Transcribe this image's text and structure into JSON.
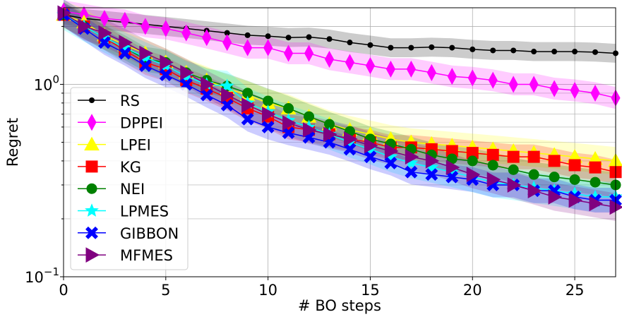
{
  "chart_data": {
    "type": "line",
    "title": "",
    "xlabel": "# BO steps",
    "ylabel": "Regret",
    "xlim": [
      0,
      27
    ],
    "ylim": [
      0.1,
      2.5
    ],
    "yscale": "log",
    "grid": true,
    "legend": "left",
    "x_ticks": [
      0,
      5,
      10,
      15,
      20,
      25
    ],
    "x_tick_labels": [
      "0",
      "5",
      "10",
      "15",
      "20",
      "25"
    ],
    "y_ticks": [
      0.1,
      1.0
    ],
    "y_tick_labels": [
      [
        "10",
        "−1"
      ],
      [
        "10",
        "0"
      ]
    ],
    "x": [
      0,
      1,
      2,
      3,
      4,
      5,
      6,
      7,
      8,
      9,
      10,
      11,
      12,
      13,
      14,
      15,
      16,
      17,
      18,
      19,
      20,
      21,
      22,
      23,
      24,
      25,
      26,
      27
    ],
    "series": [
      {
        "name": "RS",
        "color": "#000000",
        "marker": "circle",
        "values": [
          2.3,
          2.2,
          2.15,
          2.1,
          2.05,
          2.0,
          1.95,
          1.9,
          1.85,
          1.8,
          1.78,
          1.75,
          1.76,
          1.72,
          1.65,
          1.6,
          1.55,
          1.55,
          1.56,
          1.55,
          1.52,
          1.5,
          1.5,
          1.48,
          1.48,
          1.48,
          1.47,
          1.45
        ],
        "spread": 0.12
      },
      {
        "name": "DPPEI",
        "color": "#ff00ff",
        "marker": "thin_diamond",
        "values": [
          2.4,
          2.3,
          2.2,
          2.15,
          2.0,
          1.95,
          1.85,
          1.75,
          1.65,
          1.55,
          1.55,
          1.45,
          1.45,
          1.35,
          1.3,
          1.25,
          1.2,
          1.2,
          1.15,
          1.1,
          1.08,
          1.05,
          1.0,
          1.0,
          0.95,
          0.93,
          0.9,
          0.85
        ],
        "spread": 0.14
      },
      {
        "name": "LPEI",
        "color": "#ffff00",
        "marker": "triangle",
        "values": [
          2.3,
          2.1,
          1.8,
          1.6,
          1.45,
          1.3,
          1.15,
          1.05,
          0.95,
          0.88,
          0.8,
          0.75,
          0.68,
          0.62,
          0.58,
          0.55,
          0.52,
          0.5,
          0.49,
          0.48,
          0.47,
          0.46,
          0.45,
          0.44,
          0.43,
          0.42,
          0.41,
          0.4
        ],
        "spread": 0.18
      },
      {
        "name": "KG",
        "color": "#ff0000",
        "marker": "square",
        "values": [
          2.3,
          2.0,
          1.75,
          1.5,
          1.3,
          1.2,
          1.05,
          0.95,
          0.85,
          0.75,
          0.68,
          0.6,
          0.58,
          0.55,
          0.52,
          0.5,
          0.47,
          0.47,
          0.46,
          0.45,
          0.44,
          0.43,
          0.42,
          0.42,
          0.4,
          0.38,
          0.37,
          0.35
        ],
        "spread": 0.16
      },
      {
        "name": "NEI",
        "color": "#008000",
        "marker": "circle",
        "values": [
          2.3,
          2.0,
          1.75,
          1.55,
          1.35,
          1.3,
          1.15,
          1.05,
          0.98,
          0.9,
          0.82,
          0.75,
          0.68,
          0.62,
          0.57,
          0.52,
          0.49,
          0.46,
          0.43,
          0.41,
          0.4,
          0.38,
          0.36,
          0.34,
          0.33,
          0.32,
          0.31,
          0.3
        ],
        "spread": 0.16
      },
      {
        "name": "LPMES",
        "color": "#00ffff",
        "marker": "star",
        "values": [
          2.3,
          2.0,
          1.75,
          1.55,
          1.38,
          1.25,
          1.1,
          1.0,
          0.98,
          0.8,
          0.72,
          0.65,
          0.6,
          0.55,
          0.5,
          0.46,
          0.42,
          0.39,
          0.37,
          0.35,
          0.33,
          0.31,
          0.3,
          0.29,
          0.28,
          0.27,
          0.26,
          0.26
        ],
        "spread": 0.2
      },
      {
        "name": "GIBBON",
        "color": "#0000ff",
        "marker": "x",
        "values": [
          2.3,
          1.95,
          1.65,
          1.45,
          1.25,
          1.12,
          1.0,
          0.88,
          0.78,
          0.66,
          0.6,
          0.56,
          0.53,
          0.5,
          0.46,
          0.42,
          0.39,
          0.35,
          0.34,
          0.33,
          0.32,
          0.3,
          0.3,
          0.28,
          0.28,
          0.26,
          0.25,
          0.25
        ],
        "spread": 0.16
      },
      {
        "name": "MFMES",
        "color": "#800080",
        "marker": "triangle_right",
        "values": [
          2.35,
          2.0,
          1.85,
          1.65,
          1.45,
          1.3,
          1.15,
          1.0,
          0.88,
          0.78,
          0.7,
          0.63,
          0.58,
          0.55,
          0.52,
          0.48,
          0.45,
          0.42,
          0.4,
          0.37,
          0.34,
          0.32,
          0.3,
          0.28,
          0.26,
          0.25,
          0.24,
          0.23
        ],
        "spread": 0.18
      }
    ]
  }
}
